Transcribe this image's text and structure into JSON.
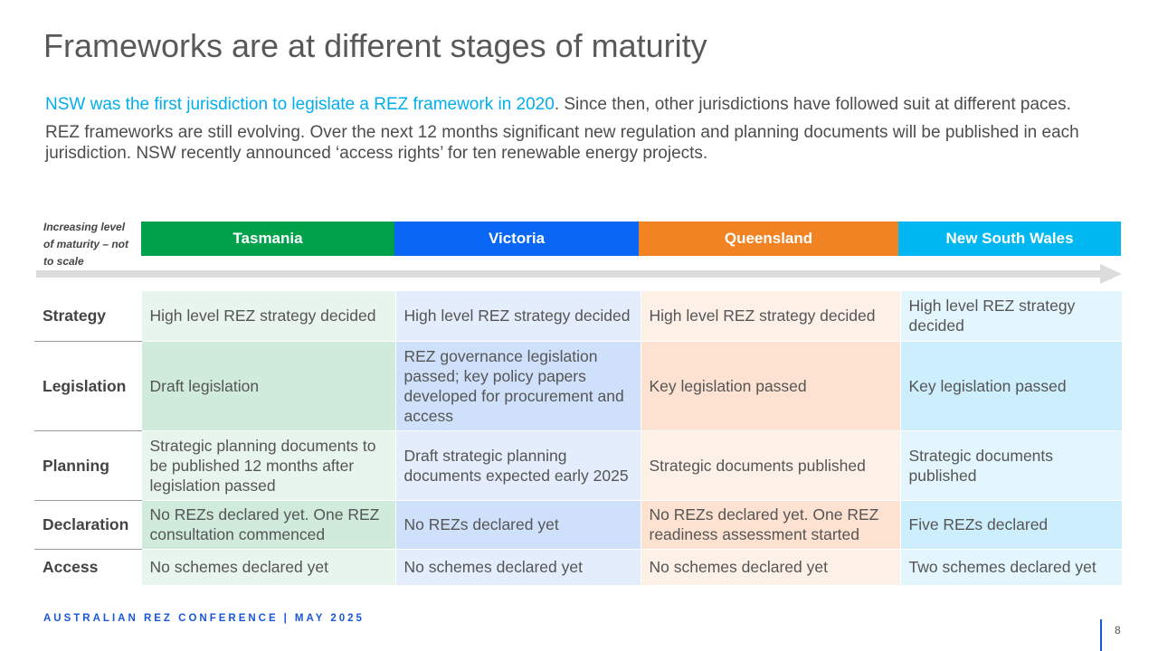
{
  "title": "Frameworks are at different stages of maturity",
  "intro": {
    "p1_highlight": "NSW was the first jurisdiction to legislate a REZ framework in 2020",
    "p1_rest": ". Since then, other jurisdictions have followed suit at different paces.",
    "p2": "REZ frameworks are still evolving. Over the next 12 months significant new regulation and planning documents will be published in each jurisdiction. NSW recently announced ‘access rights’ for ten renewable energy projects."
  },
  "maturity_note": "Increasing level of maturity – not to scale",
  "colors": {
    "highlight": "#00aeef",
    "tasmania": "#00a14b",
    "victoria": "#0a66f5",
    "queensland": "#f28322",
    "nsw": "#00b7f1"
  },
  "columns": [
    "Tasmania",
    "Victoria",
    "Queensland",
    "New South Wales"
  ],
  "rows": [
    {
      "label": "Strategy",
      "cells": [
        "High level REZ strategy decided",
        "High level REZ strategy decided",
        "High level REZ strategy decided",
        "High level REZ strategy decided"
      ]
    },
    {
      "label": "Legislation",
      "cells": [
        "Draft legislation",
        "REZ governance legislation passed; key policy papers developed for procurement and access",
        "Key legislation passed",
        "Key legislation passed"
      ]
    },
    {
      "label": "Planning",
      "cells": [
        "Strategic planning documents to be published 12 months after legislation passed",
        "Draft strategic planning documents expected early 2025",
        "Strategic documents published",
        "Strategic documents published"
      ]
    },
    {
      "label": "Declaration",
      "cells": [
        "No REZs declared yet. One REZ consultation commenced",
        "No REZs declared yet",
        "No REZs declared yet. One REZ readiness assessment started",
        "Five REZs declared"
      ]
    },
    {
      "label": "Access",
      "cells": [
        "No schemes declared yet",
        "No schemes declared yet",
        "No schemes declared yet",
        "Two schemes declared yet"
      ]
    }
  ],
  "footer": {
    "left": "AUSTRALIAN REZ CONFERENCE",
    "separator": "|",
    "right": "MAY 2025"
  },
  "page_number": "8"
}
